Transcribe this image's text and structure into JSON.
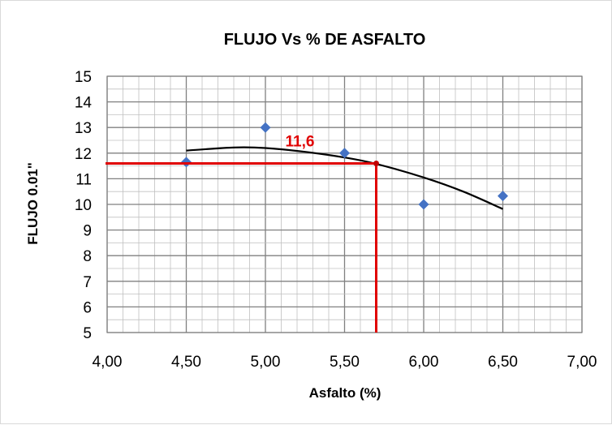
{
  "chart_data": {
    "type": "scatter",
    "title": "FLUJO Vs % DE ASFALTO",
    "xlabel": "Asfalto (%)",
    "ylabel": "FLUJO 0.01\"",
    "xlim": [
      4.0,
      7.0
    ],
    "ylim": [
      5,
      15
    ],
    "x_ticks": [
      "4,00",
      "4,50",
      "5,00",
      "5,50",
      "6,00",
      "6,50",
      "7,00"
    ],
    "y_ticks": [
      "5",
      "6",
      "7",
      "8",
      "9",
      "10",
      "11",
      "12",
      "13",
      "14",
      "15"
    ],
    "grid": true,
    "legend": "none",
    "series": [
      {
        "points": [
          {
            "x": 4.5,
            "y": 11.65
          },
          {
            "x": 5.0,
            "y": 13.0
          },
          {
            "x": 5.5,
            "y": 12.0
          },
          {
            "x": 6.0,
            "y": 10.0
          },
          {
            "x": 6.5,
            "y": 10.33
          }
        ],
        "color": "#4472c4",
        "marker": "diamond"
      }
    ],
    "trendline": {
      "type": "polynomial",
      "x_range": [
        4.5,
        6.5
      ],
      "points": [
        {
          "x": 4.5,
          "y": 12.1
        },
        {
          "x": 4.8,
          "y": 12.22
        },
        {
          "x": 5.0,
          "y": 12.2
        },
        {
          "x": 5.25,
          "y": 12.05
        },
        {
          "x": 5.5,
          "y": 11.83
        },
        {
          "x": 5.7,
          "y": 11.58
        },
        {
          "x": 6.0,
          "y": 11.05
        },
        {
          "x": 6.25,
          "y": 10.5
        },
        {
          "x": 6.5,
          "y": 9.82
        }
      ],
      "color": "#000000"
    },
    "annotation": {
      "label": "11,6",
      "x": 5.7,
      "y": 11.6,
      "color": "#e00000"
    }
  }
}
